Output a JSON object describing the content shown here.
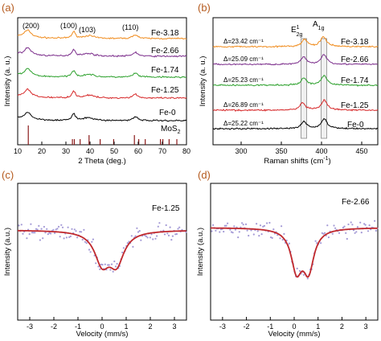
{
  "panels": [
    {
      "letter": "(a)",
      "xlabel": "2 Theta (deg.)",
      "ylabel": "Intensity (a. u.)",
      "xticks": [
        "10",
        "20",
        "30",
        "40",
        "50",
        "60",
        "70",
        "80"
      ],
      "peak_labels": [
        "(200)",
        "(100)",
        "(103)",
        "(110)"
      ],
      "reference_label": "MoS",
      "reference_subscript": "2"
    },
    {
      "letter": "(b)",
      "xlabel": "Raman shifts (cm",
      "xlabel_sup": "-1",
      "xlabel_end": ")",
      "ylabel": "Intensity (a. u.)",
      "xticks": [
        "300",
        "350",
        "400",
        "450"
      ],
      "mode_e": "E",
      "mode_e_sup": "1",
      "mode_e_sub": "2g",
      "mode_a": "A",
      "mode_a_sub": "1g",
      "deltas": [
        "Δ=23.42 cm⁻¹",
        "Δ=25.09 cm⁻¹",
        "Δ=25.23 cm⁻¹",
        "Δ=26.89 cm⁻¹",
        "Δ=25.22 cm⁻¹"
      ]
    },
    {
      "letter": "(c)",
      "sample": "Fe-1.25",
      "xlabel": "Velocity (mm/s)",
      "ylabel": "Intensity (a.u.)",
      "xticks": [
        "-3",
        "-2",
        "-1",
        "0",
        "1",
        "2",
        "3"
      ]
    },
    {
      "letter": "(d)",
      "sample": "Fe-2.66",
      "xlabel": "Velocity (mm/s)",
      "ylabel": "Intensity (a.u.)",
      "xticks": [
        "-3",
        "-2",
        "-1",
        "0",
        "1",
        "2",
        "3"
      ]
    }
  ],
  "series_names": [
    "Fe-3.18",
    "Fe-2.66",
    "Fe-1.74",
    "Fe-1.25",
    "Fe-0"
  ],
  "colors": {
    "Fe-3.18": "#f08c1e",
    "Fe-2.66": "#7b2d8b",
    "Fe-1.74": "#2ca02c",
    "Fe-1.25": "#d62728",
    "Fe-0": "#000000",
    "reference": "#8b1a1a",
    "fit": "#c0282d",
    "points": "#a49ad6",
    "panel_letter": "#b55a1e"
  },
  "chart_data": [
    {
      "type": "line",
      "panel": "(a)",
      "xlim": [
        10,
        80
      ],
      "yticks_shown": false,
      "series": [
        {
          "name": "Fe-3.18",
          "peaks_2theta": [
            14.2,
            33.2,
            39.5,
            58.8
          ]
        },
        {
          "name": "Fe-2.66",
          "peaks_2theta": [
            14.2,
            33.2,
            39.5,
            58.8
          ]
        },
        {
          "name": "Fe-1.74",
          "peaks_2theta": [
            14.2,
            33.2,
            39.5,
            58.8
          ]
        },
        {
          "name": "Fe-1.25",
          "peaks_2theta": [
            14.2,
            33.2,
            39.5,
            58.8
          ]
        },
        {
          "name": "Fe-0",
          "peaks_2theta": [
            14.2,
            33.2,
            39.5,
            58.8
          ]
        }
      ],
      "reference_lines_2theta": [
        14.4,
        32.7,
        33.5,
        35.9,
        39.6,
        44.2,
        49.8,
        58.4,
        60.2,
        62.9,
        69.2,
        70.2,
        72.8,
        76.0
      ]
    },
    {
      "type": "line",
      "panel": "(b)",
      "xlim": [
        265,
        470
      ],
      "yticks_shown": false,
      "series": [
        {
          "name": "Fe-3.18",
          "E2g": 379.0,
          "A1g": 402.4,
          "delta": 23.42
        },
        {
          "name": "Fe-2.66",
          "E2g": 378.0,
          "A1g": 403.1,
          "delta": 25.09
        },
        {
          "name": "Fe-1.74",
          "E2g": 378.0,
          "A1g": 403.2,
          "delta": 25.23
        },
        {
          "name": "Fe-1.25",
          "E2g": 376.5,
          "A1g": 403.4,
          "delta": 26.89
        },
        {
          "name": "Fe-0",
          "E2g": 378.0,
          "A1g": 403.2,
          "delta": 25.22
        }
      ]
    },
    {
      "type": "scatter",
      "panel": "(c)",
      "xlim": [
        -3.5,
        3.5
      ],
      "fit_doublet": {
        "center": 0.3,
        "splitting": 0.6,
        "width": 0.75,
        "depth": 0.8
      }
    },
    {
      "type": "scatter",
      "panel": "(d)",
      "xlim": [
        -3.5,
        3.5
      ],
      "fit_doublet": {
        "center": 0.35,
        "splitting": 0.5,
        "width": 0.55,
        "depth": 0.95
      }
    }
  ]
}
